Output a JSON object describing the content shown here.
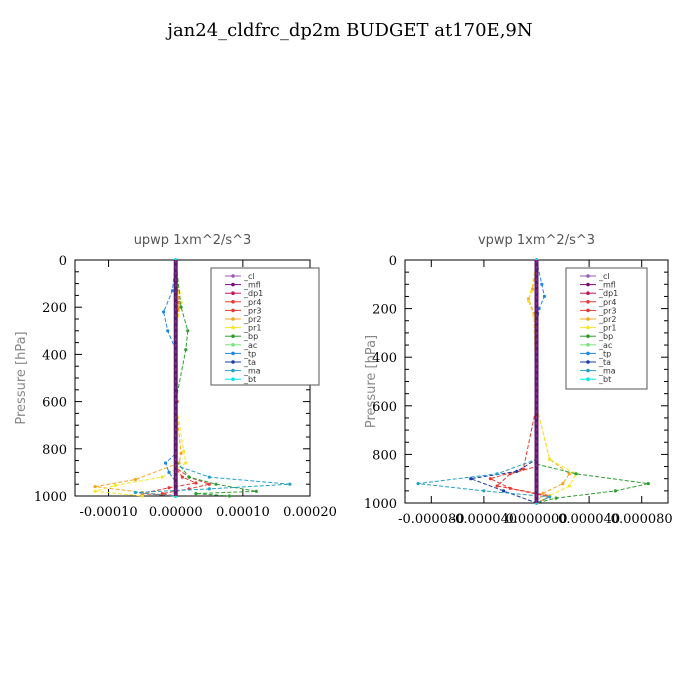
{
  "title": "jan24_cldfrc_dp2m  BUDGET at170E,9N",
  "legend_entries": [
    "_cl",
    "_mfl",
    "_dp1",
    "_pr4",
    "_pr3",
    "_pr2",
    "_pr1",
    "_bp",
    "_ac",
    "_tp",
    "_ta",
    "_ma",
    "_bt"
  ],
  "colors": {
    "_cl": "#9b59b6",
    "_mfl": "#7b0a7b",
    "_dp1": "#c2185b",
    "_pr4": "#e53935",
    "_pr3": "#e53935",
    "_pr2": "#f5a623",
    "_pr1": "#f5e62a",
    "_bp": "#2e9e2e",
    "_ac": "#7be37b",
    "_tp": "#1e88e5",
    "_ta": "#1a3fa8",
    "_ma": "#26a0c8",
    "_bt": "#00e5ee"
  },
  "chart_data": [
    {
      "type": "line",
      "title": "upwp   1xm^2/s^3",
      "ylabel": "Pressure [hPa]",
      "xlabel": "",
      "xlim": [
        -0.00015,
        0.0002
      ],
      "ylim": [
        1000,
        0
      ],
      "xticks": [
        -0.0001,
        0.0,
        0.0001,
        0.0002
      ],
      "xtick_labels": [
        "-0.00010",
        "0.00000",
        "0.00010",
        "0.00020"
      ],
      "yticks": [
        0,
        200,
        400,
        600,
        800,
        1000
      ],
      "ytick_labels": [
        "0",
        "200",
        "400",
        "600",
        "800",
        "1000"
      ],
      "legend": "top-right",
      "series": [
        {
          "name": "_cl",
          "x": [
            0,
            0,
            0,
            0,
            0,
            0
          ],
          "y": [
            0,
            200,
            400,
            600,
            800,
            1000
          ]
        },
        {
          "name": "_mfl",
          "x": [
            0,
            0,
            0,
            0,
            0,
            0
          ],
          "y": [
            0,
            200,
            400,
            600,
            800,
            1000
          ]
        },
        {
          "name": "_dp1",
          "x": [
            0,
            0,
            0,
            0,
            0,
            0
          ],
          "y": [
            0,
            200,
            400,
            600,
            800,
            1000
          ]
        },
        {
          "name": "_pr4",
          "x": [
            0,
            0,
            0,
            2e-06,
            0,
            2e-05,
            5e-05,
            2e-05,
            -2e-05,
            0
          ],
          "y": [
            0,
            200,
            400,
            600,
            880,
            920,
            950,
            970,
            990,
            1000
          ]
        },
        {
          "name": "_pr3",
          "x": [
            0,
            5e-06,
            0,
            0,
            0,
            1e-05,
            3e-05,
            -1e-05,
            -5e-05,
            0
          ],
          "y": [
            0,
            180,
            300,
            600,
            880,
            920,
            945,
            965,
            990,
            1000
          ]
        },
        {
          "name": "_pr2",
          "x": [
            0,
            4e-06,
            5e-06,
            0,
            0,
            8e-06,
            5e-06,
            -6e-05,
            -0.00012,
            -5e-05,
            0
          ],
          "y": [
            0,
            130,
            200,
            300,
            600,
            820,
            860,
            930,
            960,
            985,
            1000
          ]
        },
        {
          "name": "_pr1",
          "x": [
            0,
            5e-06,
            8e-06,
            0,
            0,
            1.2e-05,
            1.5e-05,
            -2e-05,
            -9e-05,
            -0.00012,
            -5e-05
          ],
          "y": [
            0,
            140,
            180,
            300,
            600,
            810,
            860,
            920,
            955,
            980,
            1000
          ]
        },
        {
          "name": "_bp",
          "x": [
            0,
            8e-06,
            1.8e-05,
            1.5e-05,
            0,
            0,
            2e-05,
            6e-05,
            0.00012,
            3e-05,
            8e-05
          ],
          "y": [
            0,
            200,
            300,
            380,
            600,
            850,
            920,
            950,
            980,
            990,
            1000
          ]
        },
        {
          "name": "_ac",
          "x": [
            0,
            0,
            0,
            0,
            0
          ],
          "y": [
            0,
            200,
            400,
            600,
            1000
          ]
        },
        {
          "name": "_tp",
          "x": [
            0,
            -5e-06,
            -1.8e-05,
            -1.2e-05,
            0,
            0,
            -1.5e-05,
            -1e-05,
            0,
            0
          ],
          "y": [
            0,
            130,
            220,
            300,
            380,
            820,
            860,
            900,
            940,
            1000
          ]
        },
        {
          "name": "_ta",
          "x": [
            0,
            0,
            0,
            0,
            0
          ],
          "y": [
            0,
            200,
            400,
            600,
            1000
          ]
        },
        {
          "name": "_ma",
          "x": [
            0,
            0,
            0,
            5e-05,
            0.00017,
            5e-05,
            -6e-05,
            0
          ],
          "y": [
            0,
            600,
            870,
            920,
            950,
            970,
            985,
            1000
          ]
        },
        {
          "name": "_bt",
          "x": [
            0,
            0,
            0,
            0,
            0
          ],
          "y": [
            0,
            200,
            400,
            600,
            1000
          ]
        }
      ]
    },
    {
      "type": "line",
      "title": "vpwp   1xm^2/s^3",
      "ylabel": "Pressure [hPa]",
      "xlabel": "",
      "xlim": [
        -0.0001,
        0.0001
      ],
      "ylim": [
        1000,
        0
      ],
      "xticks": [
        -8e-05,
        -4e-05,
        0.0,
        4e-05,
        8e-05
      ],
      "xtick_labels": [
        "-0.000080",
        "-0.000040",
        "0.000000",
        "0.000040",
        "0.000080"
      ],
      "yticks": [
        0,
        200,
        400,
        600,
        800,
        1000
      ],
      "ytick_labels": [
        "0",
        "200",
        "400",
        "600",
        "800",
        "1000"
      ],
      "legend": "top-right",
      "series": [
        {
          "name": "_cl",
          "x": [
            0,
            0,
            0,
            0,
            0
          ],
          "y": [
            0,
            200,
            400,
            600,
            1000
          ]
        },
        {
          "name": "_mfl",
          "x": [
            0,
            0,
            0,
            0,
            0
          ],
          "y": [
            0,
            200,
            400,
            600,
            1000
          ]
        },
        {
          "name": "_dp1",
          "x": [
            0,
            0,
            0,
            0,
            0
          ],
          "y": [
            0,
            200,
            400,
            600,
            1000
          ]
        },
        {
          "name": "_pr4",
          "x": [
            0,
            0,
            0,
            -2e-05,
            -3e-05,
            1e-05,
            0
          ],
          "y": [
            0,
            600,
            850,
            880,
            930,
            970,
            1000
          ]
        },
        {
          "name": "_pr3",
          "x": [
            0,
            0,
            -1e-05,
            -3.5e-05,
            -2e-05,
            1e-05,
            0
          ],
          "y": [
            0,
            600,
            860,
            900,
            940,
            975,
            1000
          ]
        },
        {
          "name": "_pr2",
          "x": [
            0,
            -3e-06,
            -6e-06,
            -2e-06,
            0,
            1e-05,
            2.5e-05,
            2e-05,
            5e-06,
            0
          ],
          "y": [
            0,
            120,
            160,
            220,
            600,
            820,
            880,
            920,
            960,
            1000
          ]
        },
        {
          "name": "_pr1",
          "x": [
            0,
            -4e-06,
            -6e-06,
            -2e-06,
            0,
            1e-05,
            3e-05,
            2.5e-05,
            1e-05,
            0
          ],
          "y": [
            0,
            130,
            170,
            230,
            600,
            820,
            880,
            930,
            970,
            1000
          ]
        },
        {
          "name": "_bp",
          "x": [
            0,
            0,
            0,
            3e-05,
            8.5e-05,
            6e-05,
            1.5e-05,
            0
          ],
          "y": [
            0,
            600,
            840,
            880,
            920,
            950,
            980,
            1000
          ]
        },
        {
          "name": "_ac",
          "x": [
            0,
            0,
            0,
            0,
            0
          ],
          "y": [
            0,
            200,
            400,
            600,
            1000
          ]
        },
        {
          "name": "_tp",
          "x": [
            0,
            4e-06,
            6e-06,
            2e-06,
            0,
            0
          ],
          "y": [
            0,
            100,
            150,
            200,
            300,
            1000
          ]
        },
        {
          "name": "_ta",
          "x": [
            0,
            0,
            -1.5e-05,
            -5e-05,
            -2.5e-05,
            0
          ],
          "y": [
            0,
            820,
            870,
            900,
            950,
            1000
          ]
        },
        {
          "name": "_ma",
          "x": [
            0,
            0,
            -3e-05,
            -9e-05,
            -4e-05,
            1e-05,
            0
          ],
          "y": [
            0,
            820,
            880,
            920,
            950,
            975,
            1000
          ]
        },
        {
          "name": "_bt",
          "x": [
            0,
            0,
            0,
            0,
            0
          ],
          "y": [
            0,
            200,
            400,
            600,
            1000
          ]
        }
      ]
    }
  ]
}
